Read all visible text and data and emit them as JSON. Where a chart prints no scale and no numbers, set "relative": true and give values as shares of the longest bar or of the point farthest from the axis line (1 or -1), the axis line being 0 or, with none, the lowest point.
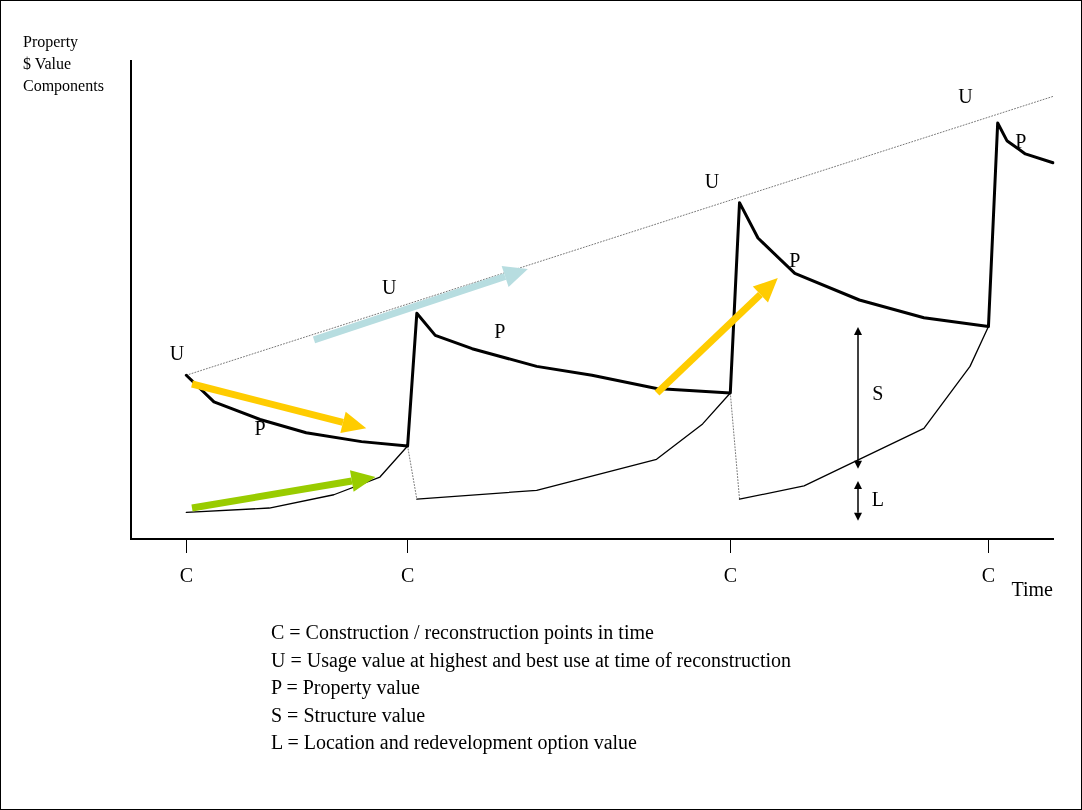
{
  "chart_data": {
    "type": "line",
    "relative": true,
    "ylabel": "Property\n$ Value\nComponents",
    "xlabel": "Time",
    "categories": [
      null,
      null,
      null,
      null,
      null,
      null,
      "C",
      null,
      null,
      null,
      null,
      null,
      null,
      null,
      null,
      null,
      null,
      null,
      null,
      null,
      null,
      null,
      null,
      null,
      null,
      null,
      null,
      null,
      null,
      null,
      "C",
      null,
      null,
      null,
      null,
      null,
      null,
      null,
      null,
      null,
      null,
      null,
      null,
      null,
      null,
      null,
      null,
      null,
      null,
      null,
      null,
      null,
      null,
      null,
      null,
      null,
      null,
      null,
      null,
      null,
      null,
      null,
      null,
      null,
      null,
      "C",
      null,
      null,
      null,
      null,
      null,
      null,
      null,
      null,
      null,
      null,
      null,
      null,
      null,
      null,
      null,
      null,
      null,
      null,
      null,
      null,
      null,
      null,
      null,
      null,
      null,
      null,
      null,
      "C",
      null,
      null,
      null,
      null,
      null,
      null,
      null
    ],
    "tick_labels": "x",
    "grid": false,
    "legend": false,
    "marker": "none",
    "series": [
      {
        "color": "#000000",
        "line_style": "solid",
        "values": [
          null,
          null,
          null,
          null,
          null,
          null,
          0.37,
          null,
          null,
          0.31,
          null,
          null,
          null,
          null,
          0.27,
          null,
          null,
          null,
          null,
          0.24,
          null,
          null,
          null,
          null,
          null,
          0.22,
          null,
          null,
          null,
          null,
          0.21,
          0.51,
          null,
          0.46,
          null,
          null,
          null,
          0.43,
          null,
          null,
          null,
          null,
          null,
          null,
          0.39,
          null,
          null,
          null,
          null,
          null,
          0.37,
          null,
          null,
          null,
          null,
          null,
          null,
          0.34,
          null,
          null,
          null,
          null,
          null,
          null,
          null,
          0.33,
          0.76,
          null,
          0.68,
          null,
          null,
          null,
          0.6,
          null,
          null,
          null,
          null,
          null,
          null,
          0.54,
          null,
          null,
          null,
          null,
          null,
          null,
          0.5,
          null,
          null,
          null,
          null,
          null,
          null,
          0.48,
          0.94,
          0.9,
          null,
          0.87,
          null,
          null,
          0.85
        ]
      },
      {
        "color": "#000000",
        "line_style": "solid",
        "values": [
          null,
          null,
          null,
          null,
          null,
          null,
          0.06,
          null,
          null,
          null,
          null,
          null,
          null,
          null,
          null,
          0.07,
          null,
          null,
          null,
          null,
          null,
          null,
          0.1,
          null,
          null,
          null,
          null,
          0.14,
          null,
          null,
          0.21,
          null,
          null,
          null,
          null,
          null,
          null,
          null,
          null,
          null,
          null,
          null,
          null,
          null,
          null,
          null,
          null,
          null,
          null,
          null,
          null,
          null,
          null,
          null,
          null,
          null,
          null,
          null,
          null,
          null,
          null,
          null,
          null,
          null,
          null,
          null,
          null,
          null,
          null,
          null,
          null,
          null,
          null,
          null,
          null,
          null,
          null,
          null,
          null,
          null,
          null,
          null,
          null,
          null,
          null,
          null,
          null,
          null,
          null,
          null,
          null,
          null,
          null,
          null,
          null,
          null,
          null,
          null,
          null,
          null,
          null
        ]
      },
      {
        "color": "#000000",
        "line_style": "solid",
        "values": [
          null,
          null,
          null,
          null,
          null,
          null,
          null,
          null,
          null,
          null,
          null,
          null,
          null,
          null,
          null,
          null,
          null,
          null,
          null,
          null,
          null,
          null,
          null,
          null,
          null,
          null,
          null,
          null,
          null,
          null,
          null,
          0.09,
          null,
          null,
          null,
          null,
          null,
          null,
          null,
          null,
          null,
          null,
          null,
          null,
          0.11,
          null,
          null,
          null,
          null,
          null,
          null,
          null,
          null,
          null,
          null,
          null,
          null,
          0.18,
          null,
          null,
          null,
          null,
          0.26,
          null,
          null,
          0.33,
          null,
          null,
          null,
          null,
          null,
          null,
          null,
          null,
          null,
          null,
          null,
          null,
          null,
          null,
          null,
          null,
          null,
          null,
          null,
          null,
          null,
          null,
          null,
          null,
          null,
          null,
          null,
          null,
          null,
          null,
          null,
          null,
          null,
          null,
          null
        ]
      },
      {
        "color": "#000000",
        "line_style": "solid",
        "values": [
          null,
          null,
          null,
          null,
          null,
          null,
          null,
          null,
          null,
          null,
          null,
          null,
          null,
          null,
          null,
          null,
          null,
          null,
          null,
          null,
          null,
          null,
          null,
          null,
          null,
          null,
          null,
          null,
          null,
          null,
          null,
          null,
          null,
          null,
          null,
          null,
          null,
          null,
          null,
          null,
          null,
          null,
          null,
          null,
          null,
          null,
          null,
          null,
          null,
          null,
          null,
          null,
          null,
          null,
          null,
          null,
          null,
          null,
          null,
          null,
          null,
          null,
          null,
          null,
          null,
          null,
          0.09,
          null,
          null,
          null,
          null,
          null,
          null,
          0.12,
          null,
          null,
          null,
          null,
          null,
          null,
          null,
          null,
          null,
          null,
          null,
          null,
          0.25,
          null,
          null,
          null,
          null,
          0.39,
          null,
          0.48,
          null,
          null,
          null,
          null,
          null,
          null,
          null
        ]
      },
      {
        "color": "#555555",
        "line_style": "dotted",
        "values": [
          null,
          null,
          null,
          null,
          null,
          null,
          null,
          null,
          null,
          null,
          null,
          null,
          null,
          null,
          null,
          null,
          null,
          null,
          null,
          null,
          null,
          null,
          null,
          null,
          null,
          null,
          null,
          null,
          null,
          null,
          0.21,
          0.09,
          null,
          null,
          null,
          null,
          null,
          null,
          null,
          null,
          null,
          null,
          null,
          null,
          null,
          null,
          null,
          null,
          null,
          null,
          null,
          null,
          null,
          null,
          null,
          null,
          null,
          null,
          null,
          null,
          null,
          null,
          null,
          null,
          null,
          null,
          null,
          null,
          null,
          null,
          null,
          null,
          null,
          null,
          null,
          null,
          null,
          null,
          null,
          null,
          null,
          null,
          null,
          null,
          null,
          null,
          null,
          null,
          null,
          null,
          null,
          null,
          null,
          null,
          null,
          null,
          null,
          null,
          null,
          null,
          null
        ]
      },
      {
        "color": "#555555",
        "line_style": "dotted",
        "values": [
          null,
          null,
          null,
          null,
          null,
          null,
          null,
          null,
          null,
          null,
          null,
          null,
          null,
          null,
          null,
          null,
          null,
          null,
          null,
          null,
          null,
          null,
          null,
          null,
          null,
          null,
          null,
          null,
          null,
          null,
          null,
          null,
          null,
          null,
          null,
          null,
          null,
          null,
          null,
          null,
          null,
          null,
          null,
          null,
          null,
          null,
          null,
          null,
          null,
          null,
          null,
          null,
          null,
          null,
          null,
          null,
          null,
          null,
          null,
          null,
          null,
          null,
          null,
          null,
          null,
          0.33,
          0.09,
          null,
          null,
          null,
          null,
          null,
          null,
          null,
          null,
          null,
          null,
          null,
          null,
          null,
          null,
          null,
          null,
          null,
          null,
          null,
          null,
          null,
          null,
          null,
          null,
          null,
          null,
          null,
          null,
          null,
          null,
          null,
          null,
          null,
          null
        ]
      },
      {
        "color": "#555555",
        "line_style": "dotted",
        "values": [
          null,
          null,
          null,
          null,
          null,
          null,
          0.37,
          null,
          null,
          null,
          null,
          null,
          null,
          null,
          null,
          null,
          null,
          null,
          null,
          null,
          null,
          null,
          null,
          null,
          null,
          null,
          null,
          null,
          null,
          null,
          null,
          null,
          null,
          null,
          null,
          null,
          null,
          null,
          null,
          null,
          null,
          null,
          null,
          null,
          null,
          null,
          null,
          null,
          null,
          null,
          null,
          null,
          null,
          null,
          null,
          null,
          null,
          null,
          null,
          null,
          null,
          null,
          null,
          null,
          null,
          null,
          null,
          null,
          null,
          null,
          null,
          null,
          null,
          null,
          null,
          null,
          null,
          null,
          null,
          null,
          null,
          null,
          null,
          null,
          null,
          null,
          null,
          null,
          null,
          null,
          null,
          null,
          null,
          null,
          null,
          null,
          null,
          null,
          null,
          null,
          1
        ]
      }
    ],
    "annotations": [
      "U",
      "U",
      "U",
      "U",
      "P",
      "P",
      "P",
      "P",
      "S",
      "L",
      "C = Construction / reconstruction points in time",
      "U = Usage value at highest and best use at time of reconstruction",
      "P = Property value",
      "S = Structure value",
      "L = Location and redevelopment option value"
    ]
  }
}
